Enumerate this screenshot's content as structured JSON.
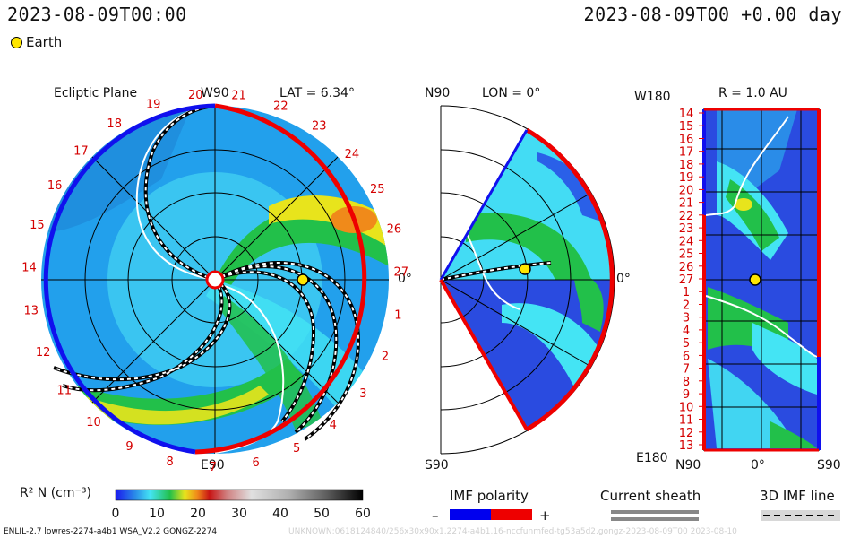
{
  "header": {
    "time_left": "2023-08-09T00:00",
    "time_right": "2023-08-09T00 +0.00 day",
    "legend_earth": "Earth"
  },
  "ecliptic": {
    "title": "Ecliptic Plane",
    "w90": "W90",
    "e90": "E90",
    "lat_label": "LAT = 6.34°",
    "zero": "0°",
    "carrington_ticks": [
      "20",
      "21",
      "22",
      "23",
      "24",
      "25",
      "26",
      "27",
      "1",
      "2",
      "3",
      "4",
      "5",
      "6",
      "7",
      "8",
      "9",
      "10",
      "11",
      "12",
      "13",
      "14",
      "15",
      "16",
      "17",
      "18",
      "19"
    ]
  },
  "meridional": {
    "n90": "N90",
    "s90": "S90",
    "lon_label": "LON = 0°",
    "zero": "0°"
  },
  "shell": {
    "w180": "W180",
    "e180": "E180",
    "r_label": "R = 1.0 AU",
    "n90": "N90",
    "zero": "0°",
    "s90": "S90",
    "rows": [
      "14",
      "15",
      "16",
      "17",
      "18",
      "19",
      "20",
      "21",
      "22",
      "23",
      "24",
      "25",
      "26",
      "27",
      "1",
      "2",
      "3",
      "4",
      "5",
      "6",
      "7",
      "8",
      "9",
      "10",
      "11",
      "12",
      "13"
    ]
  },
  "colorbar": {
    "label": "R² N (cm⁻³)",
    "ticks": [
      "0",
      "10",
      "20",
      "30",
      "40",
      "50",
      "60"
    ]
  },
  "imf_polarity": {
    "label": "IMF polarity",
    "minus": "–",
    "plus": "+",
    "neg_color": "#0000ee",
    "pos_color": "#ee0000"
  },
  "current_sheath": {
    "label": "Current sheath"
  },
  "imf_line": {
    "label": "3D IMF line"
  },
  "footer": {
    "model": "ENLIL-2.7 lowres-2274-a4b1 WSA_V2.2 GONGZ-2274",
    "run": "UNKNOWN:0618124840/256x30x90x1.2274-a4b1.16-nccfunmfed-tg53a5d2.gongz-2023-08-09T00       2023-08-10"
  },
  "colors": {
    "background_blue": "#22a0ec",
    "cyan": "#44e4f4",
    "green": "#22c04a",
    "yellow": "#e6e81e",
    "orange": "#f08a1a",
    "deep_blue": "#2a4be0",
    "sector_red": "#ee0000",
    "sector_blue": "#1010ee"
  }
}
